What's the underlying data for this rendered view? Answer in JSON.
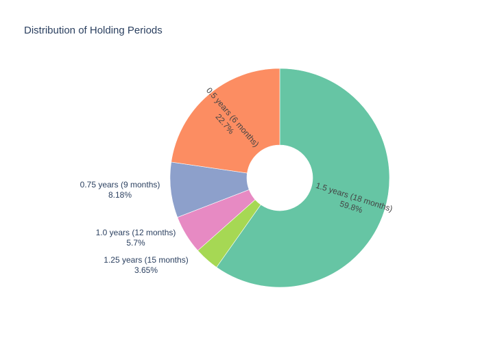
{
  "chart_data": {
    "type": "pie",
    "title": "Distribution of Holding Periods",
    "hole": 0.3,
    "slices": [
      {
        "label": "1.5 years (18 months)",
        "value": 59.8,
        "percent_text": "59.8%",
        "color": "#66c5a4"
      },
      {
        "label": "1.25 years (15 months)",
        "value": 3.65,
        "percent_text": "3.65%",
        "color": "#a6d854"
      },
      {
        "label": "1.0 years (12 months)",
        "value": 5.7,
        "percent_text": "5.7%",
        "color": "#e78ac3"
      },
      {
        "label": "0.75 years (9 months)",
        "value": 8.18,
        "percent_text": "8.18%",
        "color": "#8da0cb"
      },
      {
        "label": "0.5 years (6 months)",
        "value": 22.7,
        "percent_text": "22.7%",
        "color": "#fc8d62"
      }
    ]
  }
}
